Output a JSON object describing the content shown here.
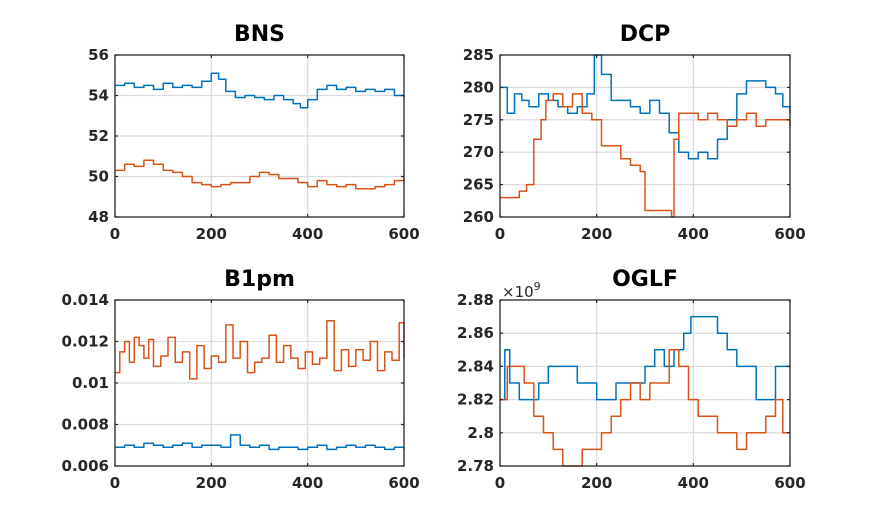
{
  "chart_data": [
    {
      "type": "line",
      "title": "BNS",
      "xlim": [
        0,
        600
      ],
      "ylim": [
        48,
        56
      ],
      "xticks": [
        0,
        200,
        400,
        600
      ],
      "yticks": [
        48,
        50,
        52,
        54,
        56
      ],
      "xtick_labels": [
        "0",
        "200",
        "400",
        "600"
      ],
      "ytick_labels": [
        "48",
        "50",
        "52",
        "54",
        "56"
      ],
      "grid": true,
      "series": [
        {
          "name": "series-1",
          "color": "#0072BD",
          "x": [
            0,
            20,
            40,
            60,
            80,
            100,
            120,
            140,
            160,
            180,
            200,
            215,
            230,
            250,
            270,
            290,
            310,
            330,
            350,
            370,
            385,
            400,
            420,
            440,
            460,
            480,
            500,
            520,
            540,
            560,
            580,
            600
          ],
          "y": [
            54.5,
            54.6,
            54.4,
            54.5,
            54.3,
            54.6,
            54.4,
            54.5,
            54.4,
            54.7,
            55.1,
            54.8,
            54.2,
            53.9,
            54.0,
            53.9,
            53.8,
            54.0,
            53.8,
            53.6,
            53.4,
            53.8,
            54.3,
            54.5,
            54.3,
            54.4,
            54.2,
            54.3,
            54.2,
            54.3,
            54.0,
            53.9
          ]
        },
        {
          "name": "series-2",
          "color": "#D95319",
          "x": [
            0,
            20,
            40,
            60,
            80,
            100,
            120,
            140,
            160,
            180,
            200,
            220,
            240,
            260,
            280,
            300,
            320,
            340,
            360,
            380,
            400,
            420,
            440,
            460,
            480,
            500,
            520,
            540,
            560,
            580,
            600
          ],
          "y": [
            50.3,
            50.6,
            50.5,
            50.8,
            50.6,
            50.3,
            50.2,
            50.0,
            49.7,
            49.6,
            49.5,
            49.6,
            49.7,
            49.7,
            50.0,
            50.2,
            50.1,
            49.9,
            49.9,
            49.7,
            49.5,
            49.8,
            49.6,
            49.5,
            49.6,
            49.4,
            49.4,
            49.5,
            49.6,
            49.8,
            49.9
          ]
        }
      ]
    },
    {
      "type": "line",
      "title": "DCP",
      "xlim": [
        0,
        600
      ],
      "ylim": [
        260,
        285
      ],
      "xticks": [
        0,
        200,
        400,
        600
      ],
      "yticks": [
        260,
        265,
        270,
        275,
        280,
        285
      ],
      "xtick_labels": [
        "0",
        "200",
        "400",
        "600"
      ],
      "ytick_labels": [
        "260",
        "265",
        "270",
        "275",
        "280",
        "285"
      ],
      "grid": true,
      "series": [
        {
          "name": "series-1",
          "color": "#0072BD",
          "x": [
            0,
            15,
            30,
            45,
            60,
            80,
            100,
            120,
            140,
            160,
            180,
            195,
            210,
            230,
            250,
            270,
            290,
            310,
            330,
            350,
            370,
            390,
            410,
            430,
            450,
            470,
            490,
            510,
            530,
            550,
            570,
            585,
            600
          ],
          "y": [
            280,
            276,
            279,
            278,
            277,
            279,
            278,
            277,
            276,
            277,
            279,
            285,
            282,
            278,
            278,
            277,
            276,
            278,
            276,
            273,
            270,
            269,
            270,
            269,
            272,
            275,
            279,
            281,
            281,
            280,
            279,
            277,
            276
          ]
        },
        {
          "name": "series-2",
          "color": "#D95319",
          "x": [
            0,
            20,
            40,
            55,
            70,
            85,
            95,
            110,
            130,
            150,
            170,
            190,
            210,
            230,
            250,
            270,
            290,
            300,
            330,
            355,
            360,
            370,
            390,
            410,
            430,
            450,
            470,
            490,
            510,
            530,
            550,
            570,
            590,
            600
          ],
          "y": [
            263,
            263,
            264,
            265,
            272,
            275,
            278,
            279,
            277,
            279,
            276,
            275,
            271,
            271,
            269,
            268,
            267,
            261,
            261,
            260,
            272,
            276,
            276,
            275,
            276,
            275,
            274,
            275,
            276,
            274,
            275,
            275,
            275,
            274
          ]
        }
      ]
    },
    {
      "type": "line",
      "title": "B1pm",
      "xlim": [
        0,
        600
      ],
      "ylim": [
        0.006,
        0.014
      ],
      "xticks": [
        0,
        200,
        400,
        600
      ],
      "yticks": [
        0.006,
        0.008,
        0.01,
        0.012,
        0.014
      ],
      "xtick_labels": [
        "0",
        "200",
        "400",
        "600"
      ],
      "ytick_labels": [
        "0.006",
        "0.008",
        "0.01",
        "0.012",
        "0.014"
      ],
      "grid": true,
      "series": [
        {
          "name": "series-1",
          "color": "#0072BD",
          "x": [
            0,
            20,
            40,
            60,
            80,
            100,
            120,
            140,
            160,
            180,
            200,
            220,
            240,
            260,
            280,
            300,
            320,
            340,
            360,
            380,
            400,
            420,
            440,
            460,
            480,
            500,
            520,
            540,
            560,
            580,
            600
          ],
          "y": [
            0.0069,
            0.007,
            0.0069,
            0.0071,
            0.007,
            0.0069,
            0.007,
            0.0071,
            0.0069,
            0.007,
            0.007,
            0.0069,
            0.0075,
            0.007,
            0.0069,
            0.007,
            0.0068,
            0.0069,
            0.0069,
            0.0068,
            0.0069,
            0.007,
            0.0068,
            0.0069,
            0.007,
            0.0069,
            0.007,
            0.0069,
            0.0068,
            0.0069,
            0.0068
          ]
        },
        {
          "name": "series-2",
          "color": "#D95319",
          "x": [
            0,
            10,
            20,
            30,
            40,
            50,
            60,
            70,
            80,
            95,
            110,
            125,
            140,
            155,
            170,
            185,
            200,
            215,
            230,
            245,
            260,
            275,
            290,
            305,
            320,
            335,
            350,
            365,
            380,
            395,
            410,
            425,
            440,
            455,
            470,
            485,
            500,
            515,
            530,
            545,
            560,
            575,
            590,
            600
          ],
          "y": [
            0.0105,
            0.0115,
            0.012,
            0.011,
            0.0122,
            0.0118,
            0.0112,
            0.0121,
            0.0108,
            0.0113,
            0.0122,
            0.011,
            0.0115,
            0.0102,
            0.0118,
            0.0107,
            0.0113,
            0.011,
            0.0128,
            0.0112,
            0.012,
            0.0105,
            0.011,
            0.0112,
            0.0123,
            0.011,
            0.0118,
            0.0112,
            0.0107,
            0.0115,
            0.0109,
            0.0112,
            0.013,
            0.0106,
            0.0116,
            0.0108,
            0.0116,
            0.0111,
            0.012,
            0.0106,
            0.0115,
            0.0111,
            0.0129,
            0.0112
          ]
        }
      ]
    },
    {
      "type": "line",
      "title": "OGLF",
      "y_exponent_label": "×10",
      "y_exponent_power": "9",
      "xlim": [
        0,
        600
      ],
      "ylim": [
        2.78,
        2.88
      ],
      "xticks": [
        0,
        200,
        400,
        600
      ],
      "yticks": [
        2.78,
        2.8,
        2.82,
        2.84,
        2.86,
        2.88
      ],
      "xtick_labels": [
        "0",
        "200",
        "400",
        "600"
      ],
      "ytick_labels": [
        "2.78",
        "2.8",
        "2.82",
        "2.84",
        "2.86",
        "2.88"
      ],
      "grid": true,
      "series": [
        {
          "name": "series-1",
          "color": "#0072BD",
          "x": [
            0,
            10,
            20,
            40,
            60,
            80,
            100,
            120,
            140,
            160,
            180,
            200,
            220,
            240,
            260,
            280,
            300,
            320,
            340,
            360,
            380,
            395,
            410,
            430,
            450,
            470,
            490,
            510,
            530,
            550,
            570,
            590,
            600
          ],
          "y": [
            2.82,
            2.85,
            2.83,
            2.82,
            2.82,
            2.83,
            2.84,
            2.84,
            2.84,
            2.83,
            2.83,
            2.82,
            2.82,
            2.83,
            2.83,
            2.83,
            2.84,
            2.85,
            2.84,
            2.85,
            2.86,
            2.87,
            2.87,
            2.87,
            2.86,
            2.85,
            2.84,
            2.84,
            2.82,
            2.82,
            2.84,
            2.84,
            2.84
          ]
        },
        {
          "name": "series-2",
          "color": "#D95319",
          "x": [
            0,
            15,
            30,
            50,
            70,
            90,
            110,
            130,
            150,
            170,
            190,
            210,
            230,
            250,
            270,
            290,
            310,
            330,
            350,
            370,
            390,
            410,
            430,
            450,
            470,
            490,
            510,
            530,
            550,
            570,
            585,
            600
          ],
          "y": [
            2.82,
            2.84,
            2.84,
            2.83,
            2.81,
            2.8,
            2.79,
            2.78,
            2.78,
            2.79,
            2.79,
            2.8,
            2.81,
            2.82,
            2.83,
            2.82,
            2.83,
            2.83,
            2.85,
            2.84,
            2.82,
            2.81,
            2.81,
            2.8,
            2.8,
            2.79,
            2.8,
            2.8,
            2.81,
            2.82,
            2.8,
            2.8
          ]
        }
      ]
    }
  ]
}
